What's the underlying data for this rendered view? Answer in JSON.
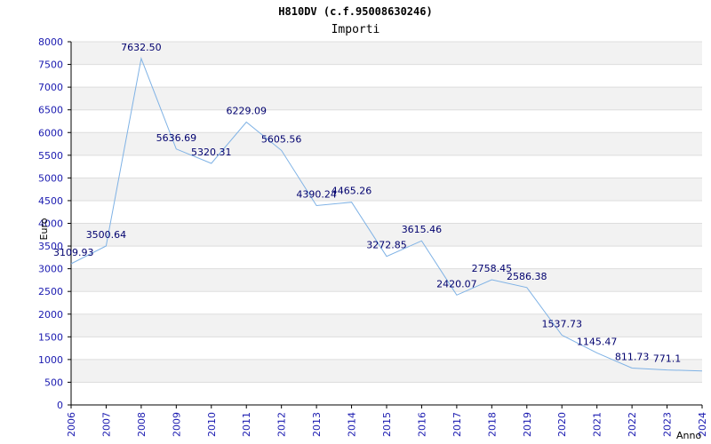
{
  "chart_data": {
    "type": "line",
    "title": "H810DV (c.f.95008630246)",
    "subtitle": "Importi",
    "xlabel": "Anno",
    "ylabel": "Euro",
    "ylim": [
      0,
      8000
    ],
    "y_ticks": [
      "0",
      "500",
      "1000",
      "1500",
      "2000",
      "2500",
      "3000",
      "3500",
      "4000",
      "4500",
      "5000",
      "5500",
      "6000",
      "6500",
      "7000",
      "7500",
      "8000"
    ],
    "x": [
      "2006",
      "2007",
      "2008",
      "2009",
      "2010",
      "2011",
      "2012",
      "2013",
      "2014",
      "2015",
      "2016",
      "2017",
      "2018",
      "2019",
      "2020",
      "2021",
      "2022",
      "2023",
      "2024"
    ],
    "data_labels": [
      "3109.93",
      "3500.64",
      "7632.50",
      "5636.69",
      "5320.31",
      "6229.09",
      "5605.56",
      "4390.24",
      "4465.26",
      "3272.85",
      "3615.46",
      "2420.07",
      "2758.45",
      "2586.38",
      "1537.73",
      "1145.47",
      "811.73",
      "771.1"
    ],
    "series": [
      {
        "x": [
          2006,
          2007,
          2008,
          2009,
          2010,
          2011,
          2012,
          2013,
          2014,
          2015,
          2016,
          2017,
          2018,
          2019,
          2020,
          2021,
          2022,
          2023,
          2024
        ],
        "values": [
          3109.93,
          3500.64,
          7632.5,
          5636.69,
          5320.31,
          6229.09,
          5605.56,
          4390.24,
          4465.26,
          3272.85,
          3615.46,
          2420.07,
          2758.45,
          2586.38,
          1537.73,
          1145.47,
          811.73,
          771.1,
          750
        ]
      }
    ],
    "grid": true,
    "colors": {
      "line": "#7fb2e5",
      "band": "#f2f2f2",
      "axis": "#000000",
      "tick_text": "#1a1ab0",
      "label_text": "#00006e"
    }
  }
}
